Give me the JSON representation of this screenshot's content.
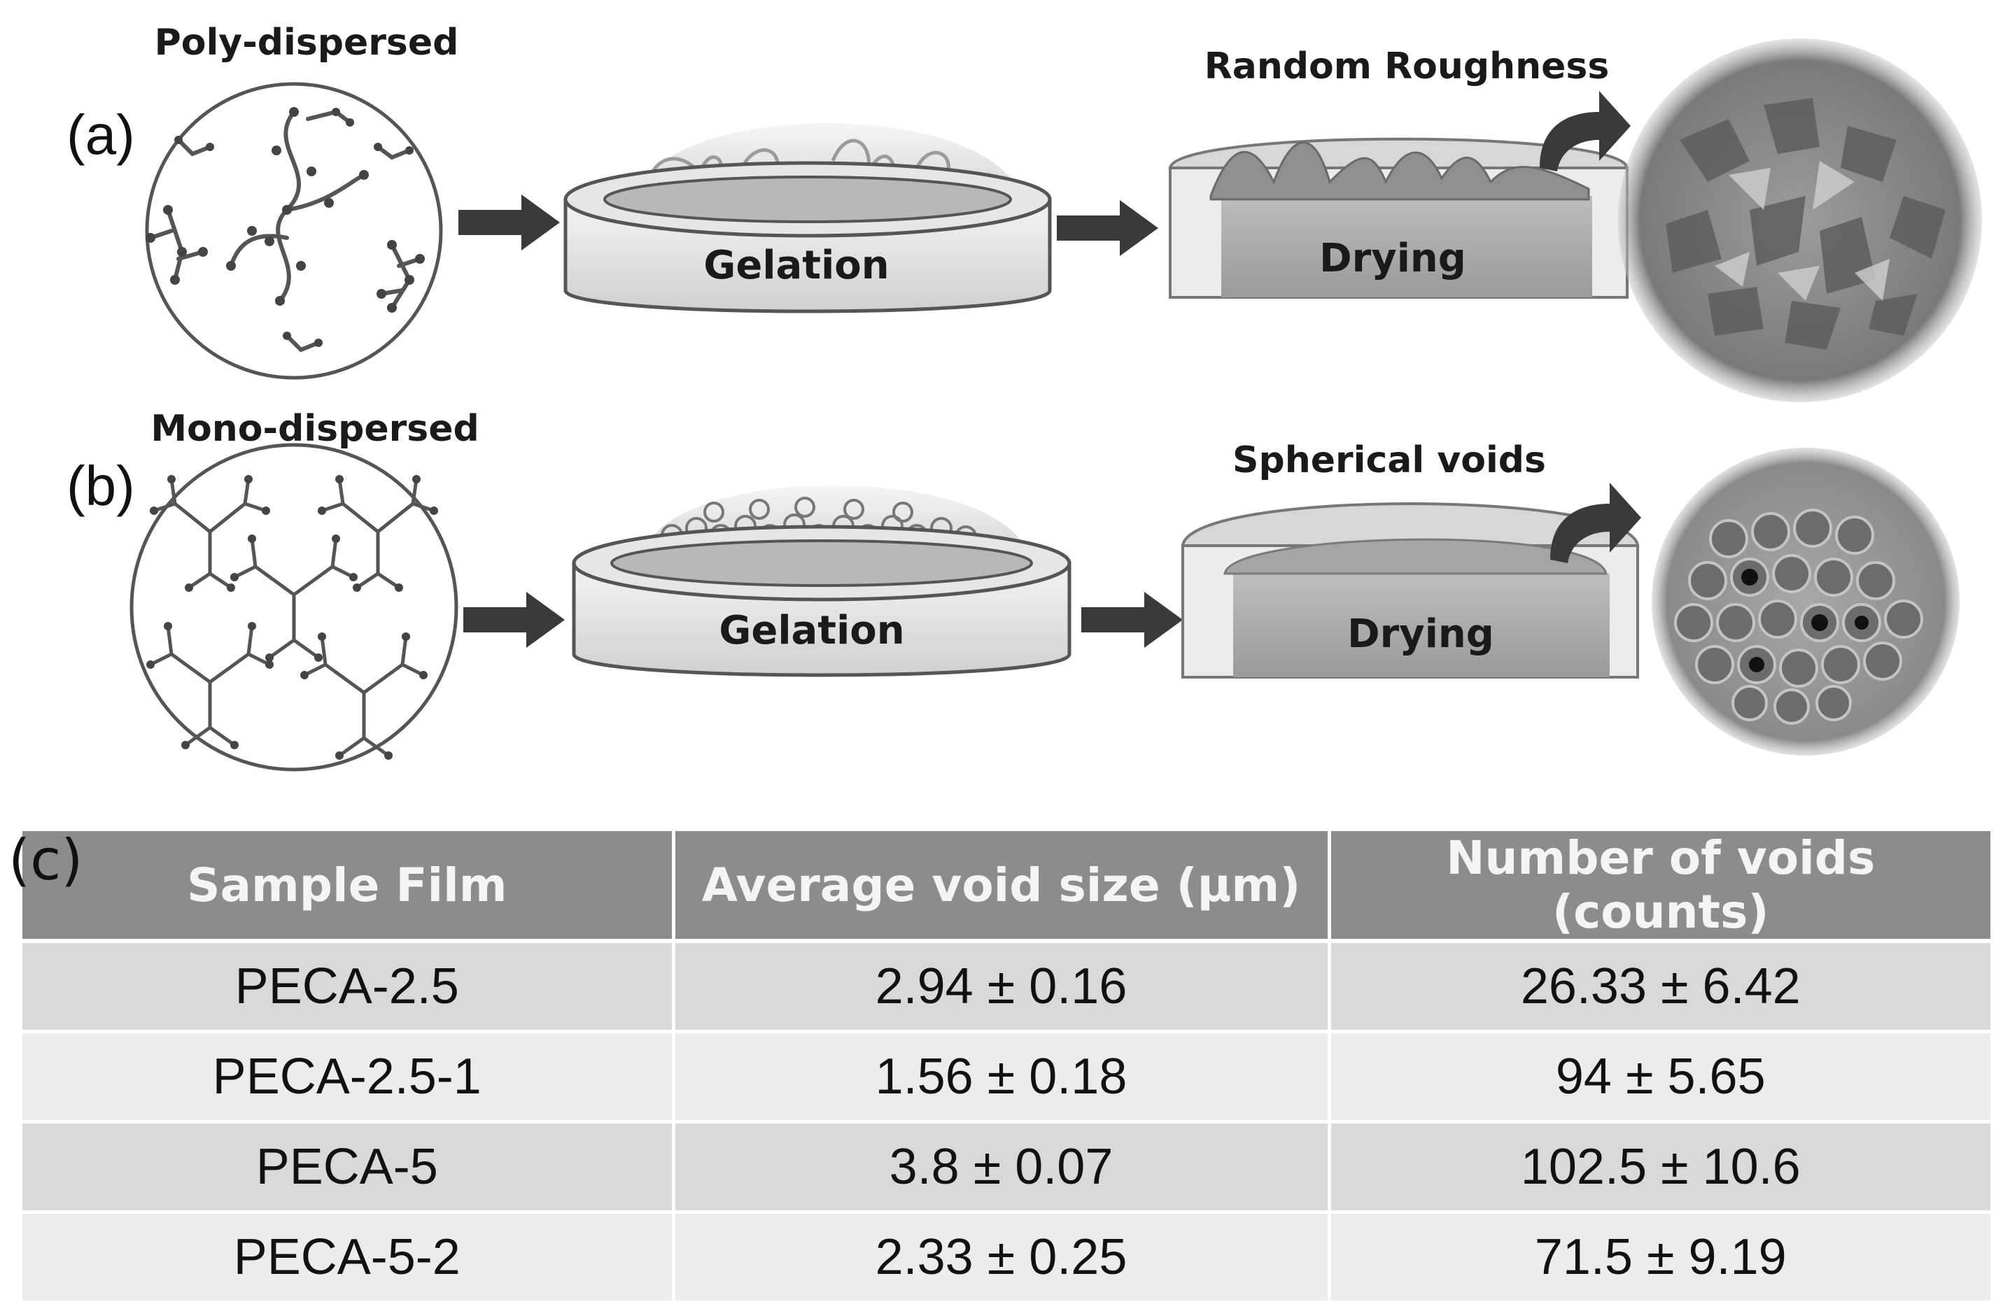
{
  "panel_a": {
    "letter": "(a)",
    "dispersion_label": "Poly-dispersed",
    "gelation_label": "Gelation",
    "drying_label": "Drying",
    "surface_label": "Random Roughness"
  },
  "panel_b": {
    "letter": "(b)",
    "dispersion_label": "Mono-dispersed",
    "gelation_label": "Gelation",
    "drying_label": "Drying",
    "surface_label": "Spherical voids"
  },
  "panel_c": {
    "letter": "(c)",
    "headers": [
      "Sample Film",
      "Average void size (μm)",
      "Number of voids (counts)"
    ],
    "rows": [
      [
        "PECA-2.5",
        "2.94 ± 0.16",
        "26.33  ±  6.42"
      ],
      [
        "PECA-2.5-1",
        "1.56 ± 0.18",
        "94  ± 5.65"
      ],
      [
        "PECA-5",
        "3.8  ± 0.07",
        "102.5  ± 10.6"
      ],
      [
        "PECA-5-2",
        "2.33  ± 0.25",
        "71.5  ± 9.19"
      ]
    ]
  },
  "colors": {
    "header_bg": "#8c8c8c",
    "row_dark": "#d9d9d9",
    "row_light": "#ececec",
    "arrow": "#3a3a3a"
  }
}
